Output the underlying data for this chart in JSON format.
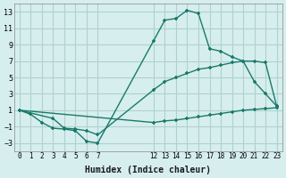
{
  "xlabel": "Humidex (Indice chaleur)",
  "bg_color": "#d6eeee",
  "grid_color": "#b0d0d0",
  "line_color": "#1a7a6a",
  "line1_x": [
    0,
    1,
    2,
    3,
    4,
    5,
    6,
    7,
    12,
    13,
    14,
    15,
    16,
    17,
    18,
    19,
    20,
    21,
    22,
    23
  ],
  "line1_y": [
    1.0,
    0.5,
    -0.5,
    -1.2,
    -1.3,
    -1.5,
    -2.8,
    -3.0,
    9.5,
    12.0,
    12.2,
    13.2,
    12.8,
    8.5,
    8.2,
    7.5,
    7.0,
    4.5,
    3.0,
    1.5
  ],
  "line2_x": [
    0,
    3,
    4,
    5,
    6,
    7,
    12,
    13,
    14,
    15,
    16,
    17,
    18,
    19,
    20,
    21,
    22,
    23
  ],
  "line2_y": [
    1.0,
    0.0,
    -1.2,
    -1.3,
    -1.5,
    -2.0,
    3.5,
    4.5,
    5.0,
    5.5,
    6.0,
    6.2,
    6.5,
    6.8,
    7.0,
    7.0,
    6.8,
    1.5
  ],
  "line3_x": [
    0,
    12,
    13,
    14,
    15,
    16,
    17,
    18,
    19,
    20,
    21,
    22,
    23
  ],
  "line3_y": [
    1.0,
    -0.5,
    -0.3,
    -0.2,
    0.0,
    0.2,
    0.4,
    0.6,
    0.8,
    1.0,
    1.1,
    1.2,
    1.3
  ],
  "xlim": [
    -0.5,
    23.5
  ],
  "ylim": [
    -4,
    14
  ],
  "yticks": [
    -3,
    -1,
    1,
    3,
    5,
    7,
    9,
    11,
    13
  ],
  "xticks": [
    0,
    1,
    2,
    3,
    4,
    5,
    6,
    7,
    12,
    13,
    14,
    15,
    16,
    17,
    18,
    19,
    20,
    21,
    22,
    23
  ]
}
